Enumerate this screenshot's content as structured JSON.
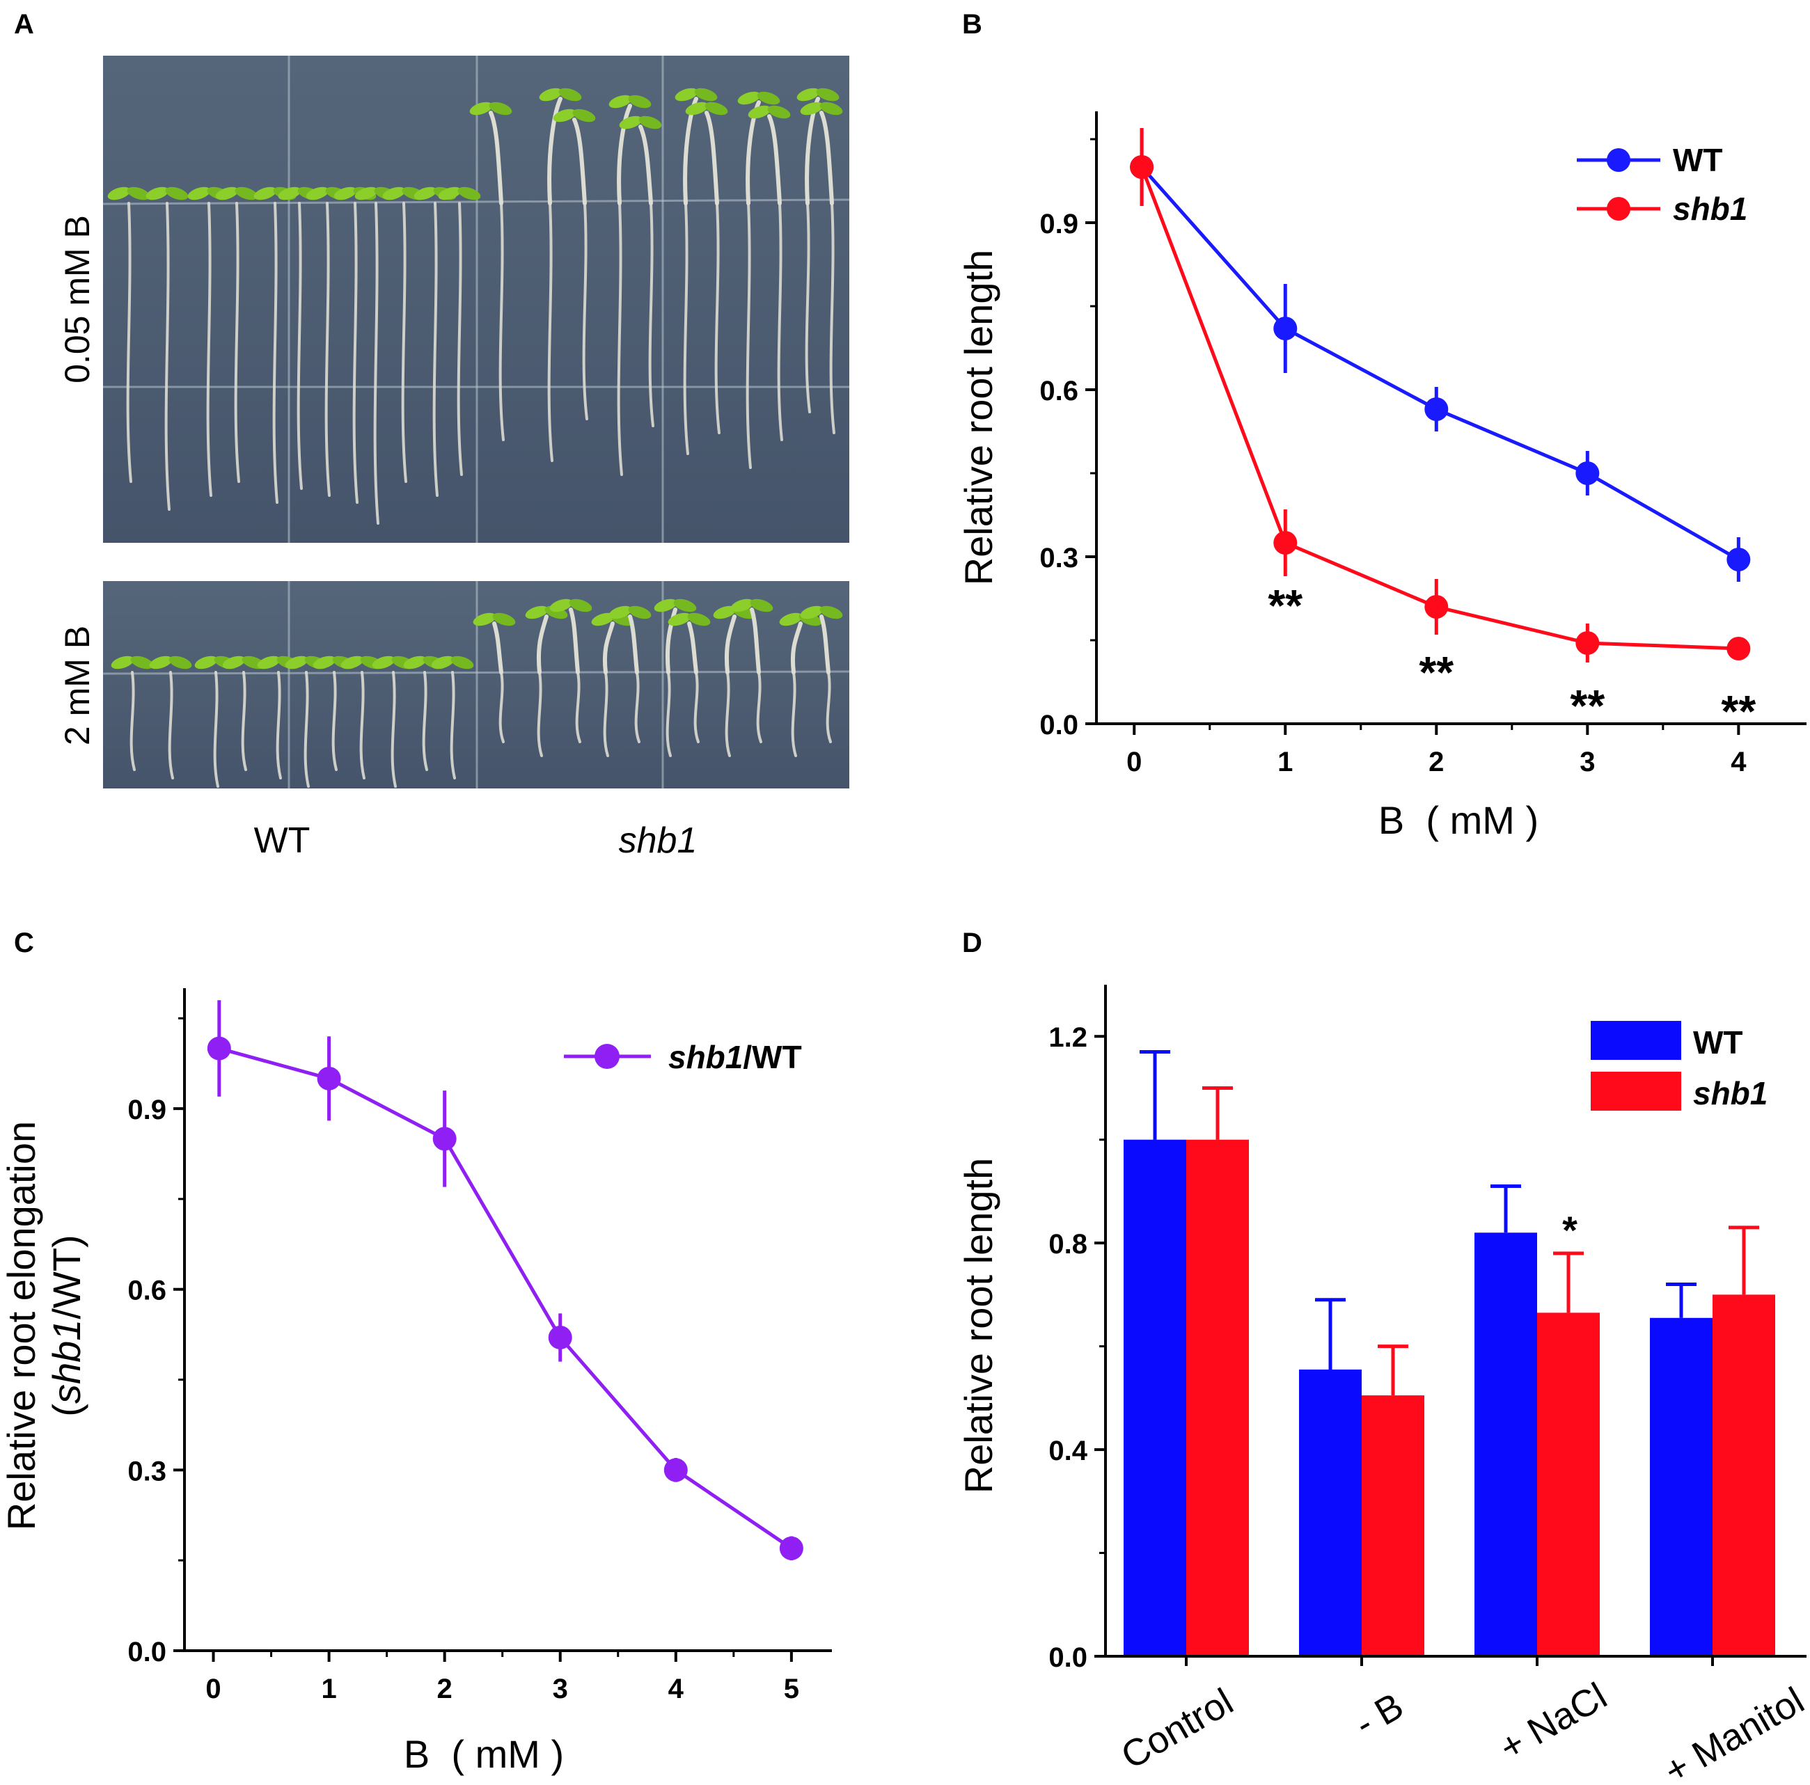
{
  "panel_letters": {
    "a": "A",
    "b": "B",
    "c": "C",
    "d": "D"
  },
  "colors": {
    "blue": "#1a1aff",
    "red": "#ff0a1a",
    "purple": "#8f1ff2",
    "plate": "#4f5f73",
    "plate_dark": "#3c4a5c",
    "root": "#dcdcd2",
    "leaf": "#8ccf2a"
  },
  "panel_a": {
    "row_labels": [
      "0.05 mM B",
      "2 mM B"
    ],
    "col_labels": [
      "WT",
      "shb1"
    ]
  },
  "chart_data": [
    {
      "id": "B",
      "type": "line",
      "xlabel": "B  ( mM )",
      "ylabel": "Relative root length",
      "xlim": [
        -0.25,
        4.45
      ],
      "ylim": [
        0,
        1.1
      ],
      "xticks": [
        0,
        1,
        2,
        3,
        4
      ],
      "xtick_labels": [
        "0",
        "1",
        "2",
        "3",
        "4"
      ],
      "yticks": [
        0.0,
        0.3,
        0.6,
        0.9
      ],
      "ytick_labels": [
        "0.0",
        "0.3",
        "0.6",
        "0.9"
      ],
      "legend_position": "top-right",
      "series": [
        {
          "name": "WT",
          "color": "#1a1aff",
          "x": [
            0.05,
            1,
            2,
            3,
            4
          ],
          "values": [
            1.0,
            0.71,
            0.565,
            0.45,
            0.295
          ],
          "errors": [
            0.07,
            0.08,
            0.04,
            0.04,
            0.04
          ]
        },
        {
          "name": "shb1",
          "italic": true,
          "color": "#ff0a1a",
          "x": [
            0.05,
            1,
            2,
            3,
            4
          ],
          "values": [
            1.0,
            0.325,
            0.21,
            0.145,
            0.135
          ],
          "errors": [
            0.07,
            0.06,
            0.05,
            0.035,
            0.015
          ]
        }
      ],
      "annotations": [
        {
          "x": 1,
          "y": 0.235,
          "text": "**"
        },
        {
          "x": 2,
          "y": 0.115,
          "text": "**"
        },
        {
          "x": 3,
          "y": 0.055,
          "text": "**"
        },
        {
          "x": 4,
          "y": 0.045,
          "text": "**"
        }
      ]
    },
    {
      "id": "C",
      "type": "line",
      "xlabel": "B  ( mM )",
      "ylabel_line1": "Relative root elongation",
      "ylabel_line2_prefix": "(",
      "ylabel_line2_italic": "shb1",
      "ylabel_line2_suffix": "/WT)",
      "xlim": [
        -0.25,
        5.35
      ],
      "ylim": [
        0,
        1.1
      ],
      "xticks": [
        0,
        1,
        2,
        3,
        4,
        5
      ],
      "xtick_labels": [
        "0",
        "1",
        "2",
        "3",
        "4",
        "5"
      ],
      "yticks": [
        0.0,
        0.3,
        0.6,
        0.9
      ],
      "ytick_labels": [
        "0.0",
        "0.3",
        "0.6",
        "0.9"
      ],
      "legend_position": "top-right",
      "legend_italic": "shb1",
      "legend_suffix": "/WT",
      "series": [
        {
          "name": "shb1/WT",
          "color": "#8f1ff2",
          "x": [
            0.05,
            1,
            2,
            3,
            4,
            5
          ],
          "values": [
            1.0,
            0.95,
            0.85,
            0.52,
            0.3,
            0.17
          ],
          "errors": [
            0.08,
            0.07,
            0.08,
            0.04,
            0.02,
            0.02
          ]
        }
      ]
    },
    {
      "id": "D",
      "type": "bar",
      "ylabel": "Relative root length",
      "categories": [
        "Control",
        "- B",
        "+ NaCl",
        "+ Manitol"
      ],
      "ylim": [
        0,
        1.3
      ],
      "yticks": [
        0.0,
        0.4,
        0.8,
        1.2
      ],
      "ytick_labels": [
        "0.0",
        "0.4",
        "0.8",
        "1.2"
      ],
      "legend_position": "top-right",
      "series": [
        {
          "name": "WT",
          "color": "#0a0aff",
          "values": [
            1.0,
            0.555,
            0.82,
            0.655
          ],
          "errors": [
            0.17,
            0.135,
            0.09,
            0.065
          ]
        },
        {
          "name": "shb1",
          "italic": true,
          "color": "#ff0a1a",
          "values": [
            1.0,
            0.505,
            0.665,
            0.7
          ],
          "errors": [
            0.1,
            0.095,
            0.115,
            0.13
          ]
        }
      ],
      "annotations": [
        {
          "category": 2,
          "series": 1,
          "text": "*"
        }
      ]
    }
  ]
}
